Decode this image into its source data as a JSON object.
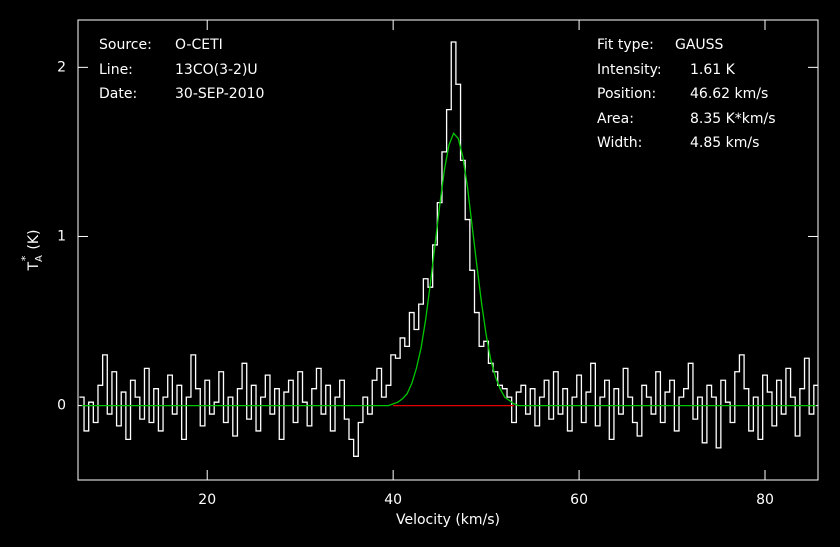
{
  "chart_data": {
    "type": "spectrum",
    "xlabel": "Velocity (km/s)",
    "ylabel": {
      "main": "T",
      "sub": "A",
      "sup": "*",
      "unit": "(K)"
    },
    "xlim": [
      6.1,
      85.7
    ],
    "ylim": [
      -0.44,
      2.28
    ],
    "xticks": [
      20,
      40,
      60,
      80
    ],
    "yticks": [
      0,
      1,
      2
    ],
    "header": [
      {
        "label": "Source:",
        "value": "O-CETI"
      },
      {
        "label": "Line:",
        "value": "13CO(3-2)U"
      },
      {
        "label": "Date:",
        "value": "30-SEP-2010"
      }
    ],
    "fit": [
      {
        "label": "Fit type:",
        "value": "GAUSS"
      },
      {
        "label": "Intensity:",
        "value": "1.61 K"
      },
      {
        "label": "Position:",
        "value": "46.62 km/s"
      },
      {
        "label": "Area:",
        "value": "8.35 K*km/s"
      },
      {
        "label": "Width:",
        "value": "4.85 km/s"
      }
    ],
    "x": [
      6.5,
      7,
      7.5,
      8,
      8.5,
      9,
      9.5,
      10,
      10.5,
      11,
      11.5,
      12,
      12.5,
      13,
      13.5,
      14,
      14.5,
      15,
      15.5,
      16,
      16.5,
      17,
      17.5,
      18,
      18.5,
      19,
      19.5,
      20,
      20.5,
      21,
      21.5,
      22,
      22.5,
      23,
      23.5,
      24,
      24.5,
      25,
      25.5,
      26,
      26.5,
      27,
      27.5,
      28,
      28.5,
      29,
      29.5,
      30,
      30.5,
      31,
      31.5,
      32,
      32.5,
      33,
      33.5,
      34,
      34.5,
      35,
      35.5,
      36,
      36.5,
      37,
      37.5,
      38,
      38.5,
      39,
      39.5,
      40,
      40.5,
      41,
      41.5,
      42,
      42.5,
      43,
      43.5,
      44,
      44.5,
      45,
      45.5,
      46,
      46.5,
      47,
      47.5,
      48,
      48.5,
      49,
      49.5,
      50,
      50.5,
      51,
      51.5,
      52,
      52.5,
      53,
      53.5,
      54,
      54.5,
      55,
      55.5,
      56,
      56.5,
      57,
      57.5,
      58,
      58.5,
      59,
      59.5,
      60,
      60.5,
      61,
      61.5,
      62,
      62.5,
      63,
      63.5,
      64,
      64.5,
      65,
      65.5,
      66,
      66.5,
      67,
      67.5,
      68,
      68.5,
      69,
      69.5,
      70,
      70.5,
      71,
      71.5,
      72,
      72.5,
      73,
      73.5,
      74,
      74.5,
      75,
      75.5,
      76,
      76.5,
      77,
      77.5,
      78,
      78.5,
      79,
      79.5,
      80,
      80.5,
      81,
      81.5,
      82,
      82.5,
      83,
      83.5,
      84,
      84.5,
      85,
      85.5
    ],
    "series": [
      {
        "color": "#ffffff",
        "style": "step",
        "values": [
          0.05,
          -0.15,
          0.02,
          -0.1,
          0.12,
          0.3,
          -0.05,
          0.2,
          -0.12,
          0.08,
          -0.2,
          0.15,
          0.05,
          -0.08,
          0.22,
          -0.1,
          0.1,
          -0.15,
          0.05,
          0.18,
          -0.05,
          0.12,
          -0.2,
          0.05,
          0.3,
          0.1,
          -0.12,
          0.15,
          -0.05,
          0.02,
          0.2,
          -0.1,
          0.05,
          -0.18,
          0.1,
          0.25,
          -0.08,
          0.12,
          -0.15,
          0.05,
          0.18,
          -0.05,
          0.1,
          -0.2,
          0.08,
          0.15,
          -0.1,
          0.2,
          0.02,
          -0.12,
          0.1,
          0.22,
          -0.05,
          0.12,
          -0.15,
          0.05,
          0.15,
          -0.08,
          -0.2,
          -0.3,
          -0.1,
          0.05,
          -0.05,
          0.15,
          0.22,
          0.05,
          0.12,
          0.3,
          0.28,
          0.4,
          0.35,
          0.55,
          0.45,
          0.6,
          0.75,
          0.7,
          0.95,
          1.2,
          1.5,
          1.75,
          2.15,
          1.9,
          1.45,
          1.1,
          0.8,
          0.55,
          0.35,
          0.38,
          0.25,
          0.2,
          0.12,
          0.1,
          0.05,
          -0.1,
          0.08,
          0.12,
          -0.05,
          0.1,
          -0.12,
          0.05,
          0.15,
          -0.08,
          0.2,
          -0.05,
          0.1,
          -0.15,
          0.05,
          0.18,
          -0.1,
          0.08,
          0.25,
          -0.12,
          0.05,
          0.15,
          -0.2,
          0.1,
          -0.05,
          0.22,
          0.05,
          -0.1,
          -0.18,
          0.12,
          0.05,
          -0.05,
          0.2,
          -0.1,
          0.08,
          0.15,
          -0.15,
          0.05,
          0.1,
          0.25,
          -0.08,
          0.05,
          -0.22,
          0.12,
          0.05,
          -0.25,
          0.15,
          0.02,
          -0.1,
          0.2,
          0.3,
          0.1,
          -0.15,
          0.05,
          -0.2,
          0.18,
          0.08,
          -0.12,
          0.15,
          -0.05,
          0.22,
          0.05,
          -0.18,
          0.1,
          0.28,
          -0.05,
          0.12
        ]
      },
      {
        "color": "#00c800",
        "style": "line",
        "values": [
          0,
          0,
          0,
          0,
          0,
          0,
          0,
          0,
          0,
          0,
          0,
          0,
          0,
          0,
          0,
          0,
          0,
          0,
          0,
          0,
          0,
          0,
          0,
          0,
          0,
          0,
          0,
          0,
          0,
          0,
          0,
          0,
          0,
          0,
          0,
          0,
          0,
          0,
          0,
          0,
          0,
          0,
          0,
          0,
          0,
          0,
          0,
          0,
          0,
          0,
          0,
          0,
          0,
          0,
          0,
          0,
          0,
          0,
          0,
          0,
          0,
          0,
          0,
          0,
          0,
          0,
          0,
          0.01,
          0.02,
          0.04,
          0.07,
          0.13,
          0.22,
          0.34,
          0.51,
          0.72,
          0.95,
          1.18,
          1.39,
          1.54,
          1.61,
          1.58,
          1.47,
          1.29,
          1.06,
          0.83,
          0.61,
          0.42,
          0.27,
          0.17,
          0.1,
          0.05,
          0.03,
          0.01,
          0,
          0,
          0,
          0,
          0,
          0,
          0,
          0,
          0,
          0,
          0,
          0,
          0,
          0,
          0,
          0,
          0,
          0,
          0,
          0,
          0,
          0,
          0,
          0,
          0,
          0,
          0,
          0,
          0,
          0,
          0,
          0,
          0,
          0,
          0,
          0,
          0,
          0,
          0,
          0,
          0,
          0,
          0,
          0,
          0,
          0,
          0,
          0,
          0,
          0,
          0,
          0,
          0,
          0,
          0,
          0,
          0,
          0,
          0,
          0,
          0,
          0,
          0,
          0,
          0
        ]
      },
      {
        "color": "#e00000",
        "style": "line",
        "x": [
          40,
          53
        ],
        "values": [
          0,
          0
        ]
      }
    ]
  }
}
